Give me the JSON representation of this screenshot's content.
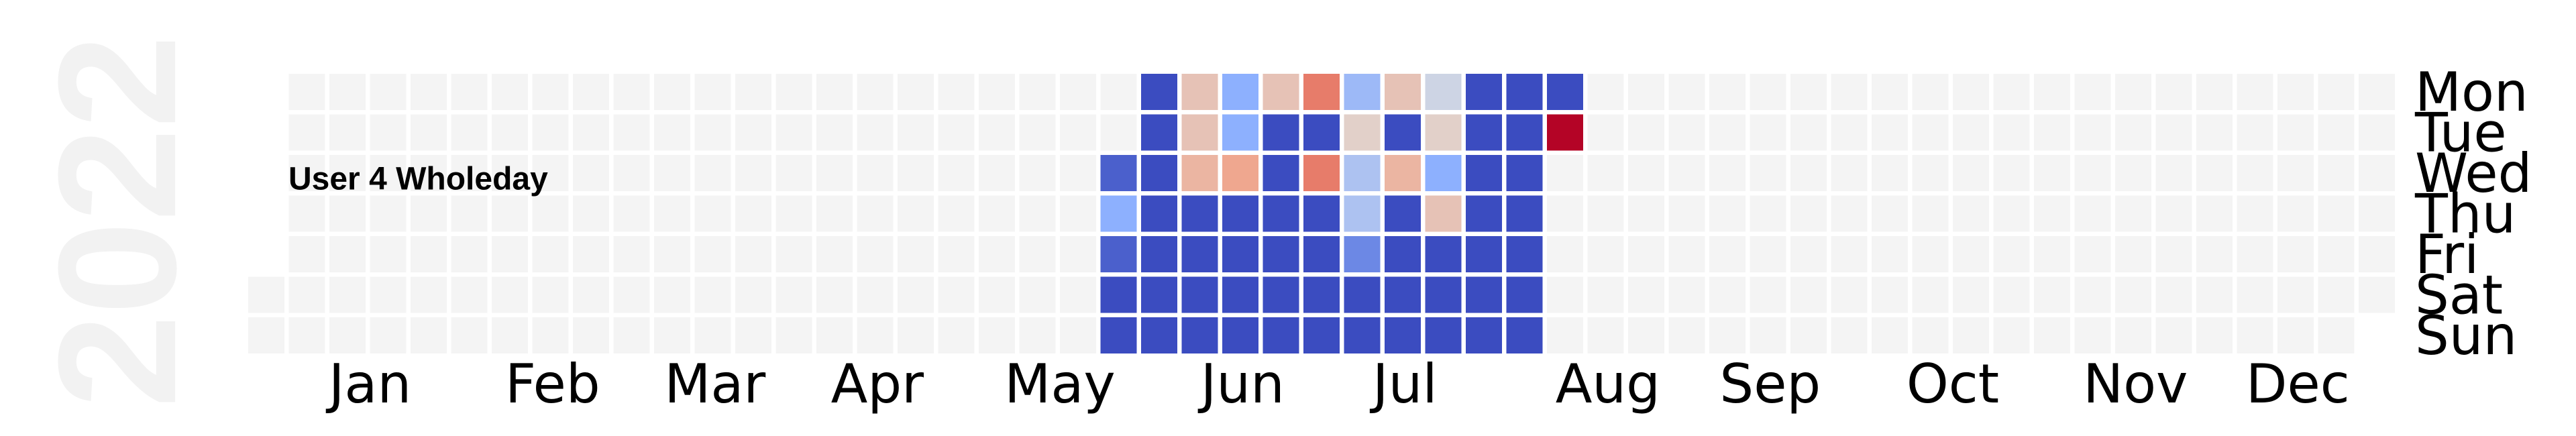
{
  "chart_data": {
    "type": "heatmap",
    "year": "2022",
    "title": "User 4 Wholeday",
    "months": [
      "Jan",
      "Feb",
      "Mar",
      "Apr",
      "May",
      "Jun",
      "Jul",
      "Aug",
      "Sep",
      "Oct",
      "Nov",
      "Dec"
    ],
    "days": [
      "Mon",
      "Tue",
      "Wed",
      "Thu",
      "Fri",
      "Sat",
      "Sun"
    ],
    "colormap": "coolwarm",
    "empty_color": "#f4f4f4",
    "value_range": [
      0,
      1
    ],
    "week_range": [
      21,
      32
    ],
    "weeks": [
      [
        null,
        null,
        0.05,
        0.25,
        0.05,
        0.0,
        0.0
      ],
      [
        0.0,
        0.0,
        0.0,
        0.0,
        0.0,
        0.0,
        0.0
      ],
      [
        0.6,
        0.6,
        0.65,
        0.0,
        0.0,
        0.0,
        0.0
      ],
      [
        0.25,
        0.25,
        0.7,
        0.0,
        0.0,
        0.0,
        0.0
      ],
      [
        0.6,
        0.0,
        0.0,
        0.0,
        0.0,
        0.0,
        0.0
      ],
      [
        0.8,
        0.0,
        0.8,
        0.0,
        0.0,
        0.0,
        0.0
      ],
      [
        0.3,
        0.55,
        0.35,
        0.35,
        0.15,
        0.0,
        0.0
      ],
      [
        0.6,
        0.0,
        0.65,
        0.0,
        0.0,
        0.0,
        0.0
      ],
      [
        0.45,
        0.55,
        0.25,
        0.6,
        0.0,
        0.0,
        0.0
      ],
      [
        0.0,
        0.0,
        0.0,
        0.0,
        0.0,
        0.0,
        0.0
      ],
      [
        0.0,
        0.0,
        0.0,
        0.0,
        0.0,
        0.0,
        0.0
      ],
      [
        0.0,
        1.0,
        null,
        null,
        null,
        null,
        null
      ]
    ]
  }
}
